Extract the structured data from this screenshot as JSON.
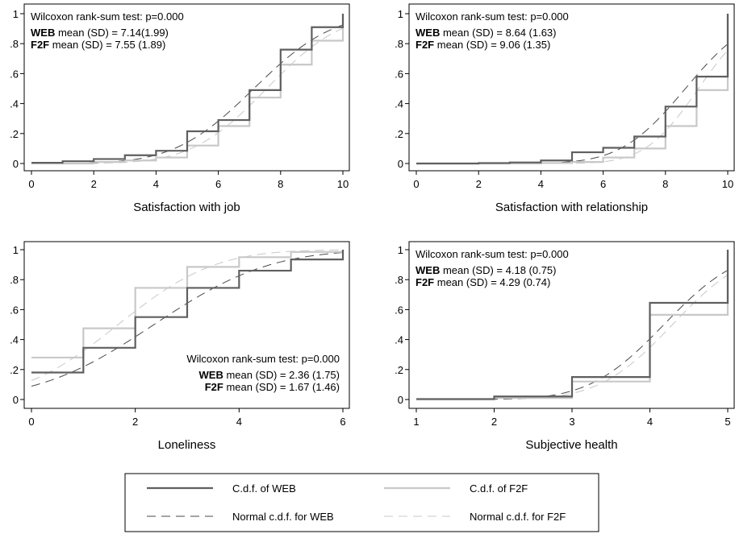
{
  "legend": {
    "items": [
      {
        "label": "C.d.f. of WEB",
        "color": "#5f5f5f",
        "dash": "solid",
        "width": 2.2
      },
      {
        "label": "C.d.f. of F2F",
        "color": "#c8c8c8",
        "dash": "solid",
        "width": 2.2
      },
      {
        "label": "Normal c.d.f. for WEB",
        "color": "#4a4a4a",
        "dash": "long",
        "width": 1
      },
      {
        "label": "Normal c.d.f. for F2F",
        "color": "#c8c8c8",
        "dash": "long",
        "width": 1
      }
    ]
  },
  "chart_data": [
    {
      "type": "line",
      "xlabel": "Satisfaction with job",
      "xlim": [
        0,
        10
      ],
      "ylim": [
        0,
        1
      ],
      "xticks": [
        0,
        2,
        4,
        6,
        8,
        10
      ],
      "yticks": [
        0,
        0.2,
        0.4,
        0.6,
        0.8,
        1
      ],
      "ytick_labels": [
        "0",
        ".2",
        ".4",
        ".6",
        ".8",
        "1"
      ],
      "annotation_position": "top-left",
      "test_text": "Wilcoxon rank-sum test: p=0.000",
      "stats": [
        {
          "group": "WEB",
          "text": " mean (SD) = 7.14(1.99)"
        },
        {
          "group": "F2F",
          "text": " mean (SD) = 7.55 (1.89)"
        }
      ],
      "series": [
        {
          "name": "C.d.f. of WEB",
          "kind": "step",
          "x": [
            0,
            1,
            2,
            3,
            4,
            5,
            6,
            7,
            8,
            9,
            10
          ],
          "y": [
            0.005,
            0.015,
            0.03,
            0.055,
            0.085,
            0.215,
            0.29,
            0.49,
            0.76,
            0.91,
            1.0
          ]
        },
        {
          "name": "C.d.f. of F2F",
          "kind": "step",
          "x": [
            0,
            1,
            2,
            3,
            4,
            5,
            6,
            7,
            8,
            9,
            10
          ],
          "y": [
            0.0,
            0.0,
            0.01,
            0.02,
            0.04,
            0.12,
            0.25,
            0.44,
            0.66,
            0.82,
            1.0
          ]
        },
        {
          "name": "Normal c.d.f. for WEB",
          "kind": "normal",
          "mean": 7.14,
          "sd": 1.99
        },
        {
          "name": "Normal c.d.f. for F2F",
          "kind": "normal",
          "mean": 7.55,
          "sd": 1.89
        }
      ]
    },
    {
      "type": "line",
      "xlabel": "Satisfaction with relationship",
      "xlim": [
        0,
        10
      ],
      "ylim": [
        0,
        1
      ],
      "xticks": [
        0,
        2,
        4,
        6,
        8,
        10
      ],
      "yticks": [
        0,
        0.2,
        0.4,
        0.6,
        0.8,
        1
      ],
      "ytick_labels": [
        "0",
        ".2",
        ".4",
        ".6",
        ".8",
        "1"
      ],
      "annotation_position": "top-left",
      "test_text": "Wilcoxon rank-sum test: p=0.000",
      "stats": [
        {
          "group": "WEB",
          "text": " mean (SD) = 8.64 (1.63)"
        },
        {
          "group": "F2F",
          "text": " mean (SD) = 9.06 (1.35)"
        }
      ],
      "series": [
        {
          "name": "C.d.f. of WEB",
          "kind": "step",
          "x": [
            0,
            1,
            2,
            3,
            4,
            5,
            6,
            7,
            8,
            9,
            10
          ],
          "y": [
            0.0,
            0.0,
            0.003,
            0.007,
            0.02,
            0.075,
            0.105,
            0.18,
            0.38,
            0.58,
            1.0
          ]
        },
        {
          "name": "C.d.f. of F2F",
          "kind": "step",
          "x": [
            0,
            1,
            2,
            3,
            4,
            5,
            6,
            7,
            8,
            9,
            10
          ],
          "y": [
            0.0,
            0.0,
            0.0,
            0.0,
            0.003,
            0.01,
            0.04,
            0.1,
            0.25,
            0.49,
            1.0
          ]
        },
        {
          "name": "Normal c.d.f. for WEB",
          "kind": "normal",
          "mean": 8.64,
          "sd": 1.63
        },
        {
          "name": "Normal c.d.f. for F2F",
          "kind": "normal",
          "mean": 9.06,
          "sd": 1.35
        }
      ]
    },
    {
      "type": "line",
      "xlabel": "Loneliness",
      "xlim": [
        0,
        6
      ],
      "ylim": [
        0,
        1
      ],
      "xticks": [
        0,
        2,
        4,
        6
      ],
      "yticks": [
        0,
        0.2,
        0.4,
        0.6,
        0.8,
        1
      ],
      "ytick_labels": [
        "0",
        ".2",
        ".4",
        ".6",
        ".8",
        "1"
      ],
      "annotation_position": "bottom-right",
      "test_text": "Wilcoxon rank-sum test: p=0.000",
      "stats": [
        {
          "group": "WEB",
          "text": " mean (SD) = 2.36 (1.75)"
        },
        {
          "group": "F2F",
          "text": " mean (SD) = 1.67 (1.46)"
        }
      ],
      "series": [
        {
          "name": "C.d.f. of WEB",
          "kind": "step",
          "x": [
            0,
            1,
            2,
            3,
            4,
            5,
            6
          ],
          "y": [
            0.18,
            0.345,
            0.55,
            0.745,
            0.86,
            0.935,
            1.0
          ]
        },
        {
          "name": "C.d.f. of F2F",
          "kind": "step",
          "x": [
            0,
            1,
            2,
            3,
            4,
            5,
            6
          ],
          "y": [
            0.28,
            0.475,
            0.745,
            0.885,
            0.95,
            0.985,
            1.0
          ]
        },
        {
          "name": "Normal c.d.f. for WEB",
          "kind": "normal",
          "mean": 2.36,
          "sd": 1.75
        },
        {
          "name": "Normal c.d.f. for F2F",
          "kind": "normal",
          "mean": 1.67,
          "sd": 1.46
        }
      ]
    },
    {
      "type": "line",
      "xlabel": "Subjective health",
      "xlim": [
        1,
        5
      ],
      "ylim": [
        0,
        1
      ],
      "xticks": [
        1,
        2,
        3,
        4,
        5
      ],
      "yticks": [
        0,
        0.2,
        0.4,
        0.6,
        0.8,
        1
      ],
      "ytick_labels": [
        "0",
        ".2",
        ".4",
        ".6",
        ".8",
        "1"
      ],
      "annotation_position": "top-left",
      "test_text": "Wilcoxon rank-sum test: p=0.000",
      "stats": [
        {
          "group": "WEB",
          "text": " mean (SD) = 4.18 (0.75)"
        },
        {
          "group": "F2F",
          "text": " mean (SD) = 4.29 (0.74)"
        }
      ],
      "series": [
        {
          "name": "C.d.f. of WEB",
          "kind": "step",
          "x": [
            1,
            2,
            3,
            4,
            5
          ],
          "y": [
            0.003,
            0.02,
            0.15,
            0.645,
            1.0
          ]
        },
        {
          "name": "C.d.f. of F2F",
          "kind": "step",
          "x": [
            1,
            2,
            3,
            4,
            5
          ],
          "y": [
            0.0,
            0.01,
            0.12,
            0.565,
            1.0
          ]
        },
        {
          "name": "Normal c.d.f. for WEB",
          "kind": "normal",
          "mean": 4.18,
          "sd": 0.75
        },
        {
          "name": "Normal c.d.f. for F2F",
          "kind": "normal",
          "mean": 4.29,
          "sd": 0.74
        }
      ]
    }
  ]
}
